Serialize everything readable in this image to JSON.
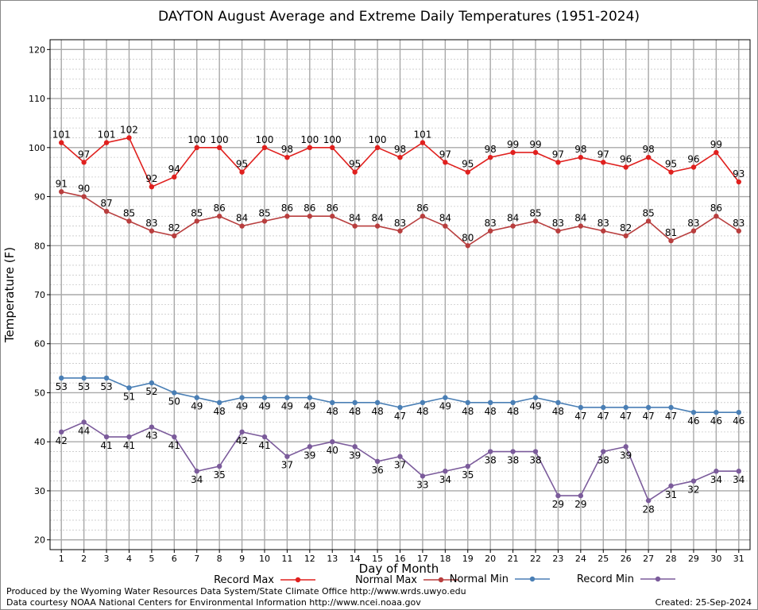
{
  "chart_data": {
    "type": "line",
    "title": "DAYTON August Average and Extreme Daily Temperatures (1951-2024)",
    "xlabel": "Day of Month",
    "ylabel": "Temperature (F)",
    "ylim": [
      18,
      122
    ],
    "xlim": [
      0.5,
      31.5
    ],
    "yticks": [
      20,
      30,
      40,
      50,
      60,
      70,
      80,
      90,
      100,
      110,
      120
    ],
    "grid": true,
    "legend_position": "bottom",
    "x": [
      1,
      2,
      3,
      4,
      5,
      6,
      7,
      8,
      9,
      10,
      11,
      12,
      13,
      14,
      15,
      16,
      17,
      18,
      19,
      20,
      21,
      22,
      23,
      24,
      25,
      26,
      27,
      28,
      29,
      30,
      31
    ],
    "series": [
      {
        "name": "Record Max",
        "color": "#e0201e",
        "label_position": "above",
        "values": [
          101,
          97,
          101,
          102,
          92,
          94,
          100,
          100,
          95,
          100,
          98,
          100,
          100,
          95,
          100,
          98,
          101,
          97,
          95,
          98,
          99,
          99,
          97,
          98,
          97,
          96,
          98,
          95,
          96,
          99,
          93
        ]
      },
      {
        "name": "Normal Max",
        "color": "#b83e3e",
        "label_position": "above",
        "values": [
          91,
          90,
          87,
          85,
          83,
          82,
          85,
          86,
          84,
          85,
          86,
          86,
          86,
          84,
          84,
          83,
          86,
          84,
          80,
          83,
          84,
          85,
          83,
          84,
          83,
          82,
          85,
          81,
          83,
          86,
          83
        ]
      },
      {
        "name": "Normal Min",
        "color": "#4a7fb5",
        "label_position": "below",
        "values": [
          53,
          53,
          53,
          51,
          52,
          50,
          49,
          48,
          49,
          49,
          49,
          49,
          48,
          48,
          48,
          47,
          48,
          49,
          48,
          48,
          48,
          49,
          48,
          47,
          47,
          47,
          47,
          47,
          46,
          46,
          46
        ]
      },
      {
        "name": "Record Min",
        "color": "#7b5b9b",
        "label_position": "below",
        "values": [
          42,
          44,
          41,
          41,
          43,
          41,
          34,
          35,
          42,
          41,
          37,
          39,
          40,
          39,
          36,
          37,
          33,
          34,
          35,
          38,
          38,
          38,
          29,
          29,
          38,
          39,
          28,
          31,
          32,
          34,
          34
        ]
      }
    ]
  },
  "footer": {
    "left_line1": "Produced by the Wyoming Water Resources Data System/State Climate Office http://www.wrds.uwyo.edu",
    "left_line2": "Data courtesy NOAA National Centers for Environmental Information http://www.ncei.noaa.gov",
    "created": "Created:  25-Sep-2024"
  }
}
